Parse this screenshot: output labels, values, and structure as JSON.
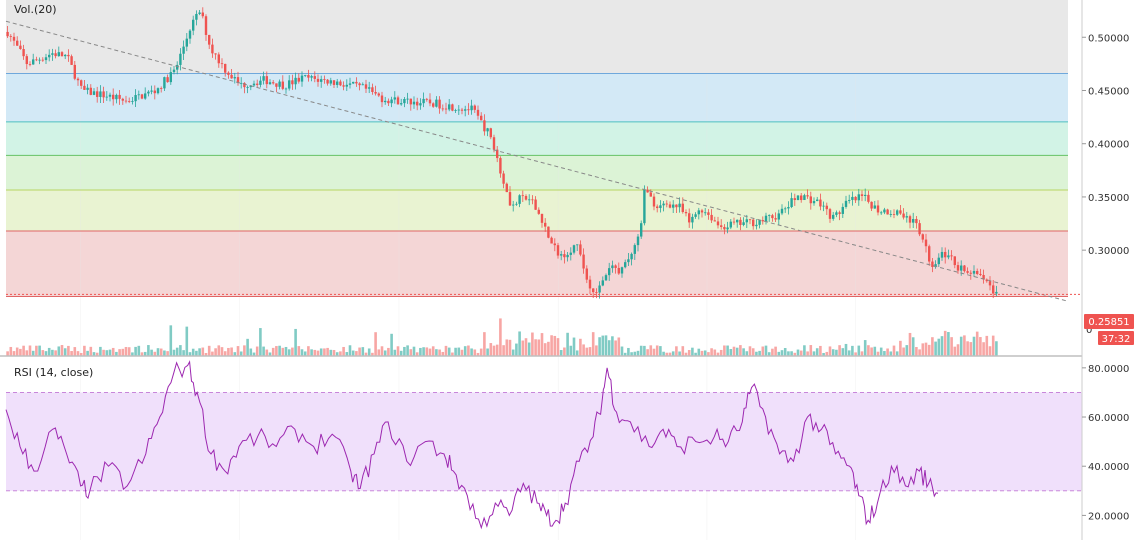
{
  "chart_data": [
    {
      "type": "candlestick",
      "indicator_label": "Vol.(20)",
      "ylim": [
        0.225,
        0.535
      ],
      "y_ticks": [
        "0.50000",
        "0.45000",
        "0.40000",
        "0.35000",
        "0.30000"
      ],
      "y_tick_values": [
        0.5,
        0.45,
        0.4,
        0.35,
        0.3
      ],
      "bottom_tick": "0",
      "price_label": "0.25851",
      "last_price": 0.25851,
      "countdown": "37:32",
      "fib_levels": [
        0.466,
        0.4205,
        0.389,
        0.3565,
        0.318,
        0.2565
      ],
      "fib_zone_colors": [
        "#e8e8e8",
        "#d3e9f6",
        "#d2f3e6",
        "#dcf3d6",
        "#e9f3d2",
        "#f4d6d6"
      ],
      "fib_line_colors": [
        "#6fa8dc",
        "#4fc0c0",
        "#66c266",
        "#b8d462",
        "#e06666",
        "#e06666"
      ],
      "trendline": {
        "start": [
          0,
          0.515
        ],
        "end": [
          1,
          0.252
        ]
      },
      "colors": {
        "up": "#26a69a",
        "down": "#ef5350",
        "vol_up": "#80cbc4",
        "vol_down": "#f7a6a4",
        "price_badge": "#ef5350"
      },
      "close_path": [
        [
          0.0,
          0.505
        ],
        [
          0.02,
          0.475
        ],
        [
          0.045,
          0.485
        ],
        [
          0.06,
          0.482
        ],
        [
          0.075,
          0.45
        ],
        [
          0.1,
          0.445
        ],
        [
          0.12,
          0.44
        ],
        [
          0.15,
          0.45
        ],
        [
          0.17,
          0.47
        ],
        [
          0.185,
          0.51
        ],
        [
          0.195,
          0.525
        ],
        [
          0.205,
          0.49
        ],
        [
          0.22,
          0.47
        ],
        [
          0.235,
          0.455
        ],
        [
          0.26,
          0.46
        ],
        [
          0.28,
          0.455
        ],
        [
          0.3,
          0.462
        ],
        [
          0.33,
          0.458
        ],
        [
          0.36,
          0.452
        ],
        [
          0.38,
          0.442
        ],
        [
          0.4,
          0.44
        ],
        [
          0.43,
          0.438
        ],
        [
          0.47,
          0.432
        ],
        [
          0.49,
          0.405
        ],
        [
          0.5,
          0.37
        ],
        [
          0.51,
          0.34
        ],
        [
          0.52,
          0.35
        ],
        [
          0.53,
          0.345
        ],
        [
          0.54,
          0.33
        ],
        [
          0.55,
          0.305
        ],
        [
          0.56,
          0.295
        ],
        [
          0.575,
          0.305
        ],
        [
          0.59,
          0.262
        ],
        [
          0.6,
          0.265
        ],
        [
          0.61,
          0.285
        ],
        [
          0.62,
          0.28
        ],
        [
          0.63,
          0.295
        ],
        [
          0.64,
          0.315
        ],
        [
          0.645,
          0.365
        ],
        [
          0.655,
          0.335
        ],
        [
          0.665,
          0.345
        ],
        [
          0.68,
          0.34
        ],
        [
          0.69,
          0.325
        ],
        [
          0.7,
          0.34
        ],
        [
          0.71,
          0.333
        ],
        [
          0.72,
          0.322
        ],
        [
          0.74,
          0.325
        ],
        [
          0.76,
          0.327
        ],
        [
          0.78,
          0.333
        ],
        [
          0.8,
          0.352
        ],
        [
          0.82,
          0.345
        ],
        [
          0.835,
          0.33
        ],
        [
          0.85,
          0.345
        ],
        [
          0.865,
          0.35
        ],
        [
          0.88,
          0.338
        ],
        [
          0.905,
          0.335
        ],
        [
          0.92,
          0.322
        ],
        [
          0.928,
          0.302
        ],
        [
          0.935,
          0.285
        ],
        [
          0.945,
          0.3
        ],
        [
          0.96,
          0.285
        ],
        [
          0.975,
          0.278
        ],
        [
          0.99,
          0.27
        ],
        [
          1.0,
          0.258
        ]
      ]
    },
    {
      "type": "line",
      "indicator_label": "RSI (14, close)",
      "ylim": [
        10,
        84
      ],
      "y_ticks": [
        "80.0000",
        "60.0000",
        "40.0000",
        "20.0000"
      ],
      "y_tick_values": [
        80,
        60,
        40,
        20
      ],
      "band": [
        30,
        70
      ],
      "colors": {
        "line": "#9c27b0",
        "band": "#f0e0fb",
        "band_border": "#c27ad6"
      },
      "path": [
        [
          0.0,
          63
        ],
        [
          0.015,
          48
        ],
        [
          0.03,
          38
        ],
        [
          0.05,
          55
        ],
        [
          0.065,
          45
        ],
        [
          0.08,
          32
        ],
        [
          0.09,
          30
        ],
        [
          0.11,
          40
        ],
        [
          0.13,
          32
        ],
        [
          0.15,
          45
        ],
        [
          0.165,
          60
        ],
        [
          0.18,
          78
        ],
        [
          0.195,
          81
        ],
        [
          0.205,
          70
        ],
        [
          0.22,
          45
        ],
        [
          0.235,
          38
        ],
        [
          0.25,
          48
        ],
        [
          0.27,
          52
        ],
        [
          0.29,
          48
        ],
        [
          0.31,
          55
        ],
        [
          0.33,
          48
        ],
        [
          0.35,
          53
        ],
        [
          0.37,
          38
        ],
        [
          0.38,
          31
        ],
        [
          0.395,
          45
        ],
        [
          0.41,
          58
        ],
        [
          0.43,
          42
        ],
        [
          0.45,
          50
        ],
        [
          0.47,
          45
        ],
        [
          0.48,
          38
        ],
        [
          0.495,
          28
        ],
        [
          0.51,
          15
        ],
        [
          0.525,
          25
        ],
        [
          0.54,
          20
        ],
        [
          0.555,
          33
        ],
        [
          0.57,
          25
        ],
        [
          0.58,
          20
        ],
        [
          0.59,
          18
        ],
        [
          0.6,
          25
        ],
        [
          0.615,
          42
        ],
        [
          0.63,
          52
        ],
        [
          0.64,
          68
        ],
        [
          0.645,
          80
        ],
        [
          0.655,
          62
        ],
        [
          0.67,
          58
        ],
        [
          0.69,
          48
        ],
        [
          0.705,
          55
        ],
        [
          0.72,
          48
        ],
        [
          0.74,
          50
        ],
        [
          0.76,
          52
        ],
        [
          0.775,
          50
        ],
        [
          0.79,
          58
        ],
        [
          0.8,
          72
        ],
        [
          0.815,
          60
        ],
        [
          0.83,
          45
        ],
        [
          0.845,
          42
        ],
        [
          0.86,
          60
        ],
        [
          0.875,
          55
        ],
        [
          0.89,
          45
        ],
        [
          0.905,
          40
        ],
        [
          0.915,
          28
        ],
        [
          0.925,
          18
        ],
        [
          0.935,
          25
        ],
        [
          0.95,
          40
        ],
        [
          0.965,
          32
        ],
        [
          0.98,
          38
        ],
        [
          0.99,
          33
        ],
        [
          1.0,
          29
        ]
      ]
    }
  ]
}
